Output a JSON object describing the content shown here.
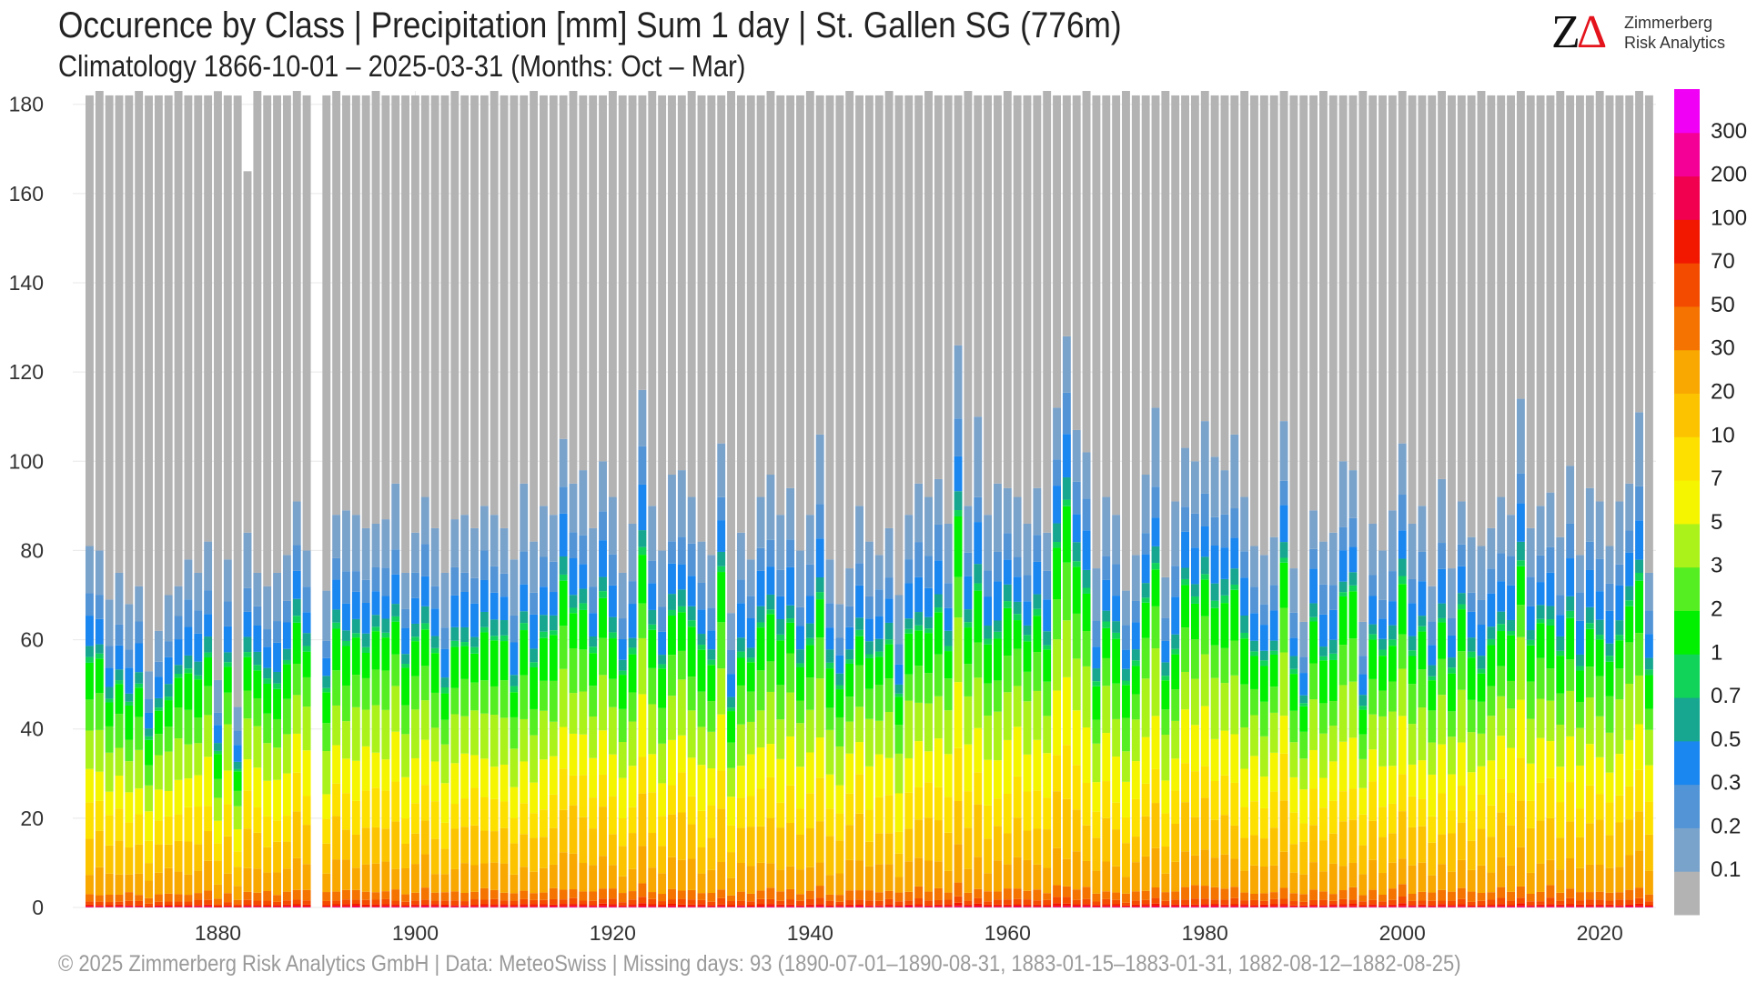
{
  "header": {
    "title": "Occurence by Class | Precipitation [mm] Sum 1 day | St. Gallen  SG (776m)",
    "subtitle": "Climatology 1866-10-01 – 2025-03-31 (Months: Oct – Mar)"
  },
  "logo": {
    "mark_z": "Z",
    "mark_delta": "Δ",
    "line1": "Zimmerberg",
    "line2": "Risk Analytics"
  },
  "footer": {
    "text": "©  2025 Zimmerberg Risk Analytics GmbH | Data: MeteoSwiss | Missing days: 93 (1890-07-01–1890-08-31, 1883-01-15–1883-01-31, 1882-08-12–1882-08-25)"
  },
  "chart_data": {
    "type": "bar",
    "stacked": true,
    "x_start_year": 1867,
    "x_end_year": 2025,
    "xlim": [
      1865.3,
      2025.7
    ],
    "x_ticks": [
      1880,
      1900,
      1920,
      1940,
      1960,
      1980,
      2000,
      2020
    ],
    "ylim": [
      0,
      183
    ],
    "y_ticks": [
      0,
      20,
      40,
      60,
      80,
      100,
      120,
      140,
      160,
      180
    ],
    "grid": true,
    "missing_years": [
      1890
    ],
    "totals": {
      "default": 182,
      "leap_years": 183,
      "exceptions": {
        "1883": 165
      }
    },
    "precip_days_by_year": {
      "1867": 81,
      "1868": 80,
      "1869": 69,
      "1870": 75,
      "1871": 68,
      "1872": 72,
      "1873": 53,
      "1874": 62,
      "1875": 70,
      "1876": 72,
      "1877": 78,
      "1878": 75,
      "1879": 82,
      "1880": 51,
      "1881": 78,
      "1882": 45,
      "1883": 84,
      "1884": 75,
      "1885": 72,
      "1886": 75,
      "1887": 79,
      "1888": 91,
      "1889": 80,
      "1891": 71,
      "1892": 88,
      "1893": 89,
      "1894": 88,
      "1895": 85,
      "1896": 86,
      "1897": 87,
      "1898": 95,
      "1899": 75,
      "1900": 84,
      "1901": 92,
      "1902": 85,
      "1903": 75,
      "1904": 87,
      "1905": 88,
      "1906": 85,
      "1907": 90,
      "1908": 88,
      "1909": 85,
      "1910": 78,
      "1911": 95,
      "1912": 82,
      "1913": 90,
      "1914": 88,
      "1915": 105,
      "1916": 95,
      "1917": 98,
      "1918": 85,
      "1919": 100,
      "1920": 92,
      "1921": 75,
      "1922": 86,
      "1923": 116,
      "1924": 90,
      "1925": 80,
      "1926": 97,
      "1927": 98,
      "1928": 92,
      "1929": 82,
      "1930": 79,
      "1931": 104,
      "1932": 66,
      "1933": 84,
      "1934": 78,
      "1935": 92,
      "1936": 97,
      "1937": 88,
      "1938": 94,
      "1939": 80,
      "1940": 88,
      "1941": 106,
      "1942": 78,
      "1943": 68,
      "1944": 76,
      "1945": 90,
      "1946": 82,
      "1947": 79,
      "1948": 85,
      "1949": 70,
      "1950": 88,
      "1951": 95,
      "1952": 92,
      "1953": 96,
      "1954": 86,
      "1955": 126,
      "1956": 90,
      "1957": 110,
      "1958": 88,
      "1959": 95,
      "1960": 94,
      "1961": 92,
      "1962": 86,
      "1963": 94,
      "1964": 84,
      "1965": 112,
      "1966": 128,
      "1967": 107,
      "1968": 102,
      "1969": 76,
      "1970": 92,
      "1971": 88,
      "1972": 71,
      "1973": 79,
      "1974": 97,
      "1975": 112,
      "1976": 74,
      "1977": 91,
      "1978": 103,
      "1979": 100,
      "1980": 109,
      "1981": 101,
      "1982": 98,
      "1983": 106,
      "1984": 92,
      "1985": 81,
      "1986": 79,
      "1987": 83,
      "1988": 109,
      "1989": 76,
      "1990": 64,
      "1991": 89,
      "1992": 82,
      "1993": 84,
      "1994": 100,
      "1995": 98,
      "1996": 64,
      "1997": 86,
      "1998": 80,
      "1999": 89,
      "2000": 104,
      "2001": 86,
      "2002": 90,
      "2003": 72,
      "2004": 96,
      "2005": 76,
      "2006": 91,
      "2007": 83,
      "2008": 81,
      "2009": 85,
      "2010": 92,
      "2011": 88,
      "2012": 114,
      "2013": 85,
      "2014": 90,
      "2015": 93,
      "2016": 83,
      "2017": 99,
      "2018": 79,
      "2019": 94,
      "2020": 91,
      "2021": 81,
      "2022": 91,
      "2023": 95,
      "2024": 111,
      "2025": 75
    },
    "legend": {
      "placement": "right",
      "classes": [
        {
          "label": "0.1",
          "color": "#b3b3b3"
        },
        {
          "label": "0.2",
          "color": "#7aa3cb"
        },
        {
          "label": "0.3",
          "color": "#5294d6"
        },
        {
          "label": "0.5",
          "color": "#1a86f0"
        },
        {
          "label": "0.7",
          "color": "#17a68f"
        },
        {
          "label": "1",
          "color": "#11d35a"
        },
        {
          "label": "2",
          "color": "#00f000"
        },
        {
          "label": "3",
          "color": "#55ee22"
        },
        {
          "label": "5",
          "color": "#aaf21a"
        },
        {
          "label": "7",
          "color": "#f5f500"
        },
        {
          "label": "10",
          "color": "#fde000"
        },
        {
          "label": "20",
          "color": "#fcc400"
        },
        {
          "label": "30",
          "color": "#f8a800"
        },
        {
          "label": "50",
          "color": "#f57300"
        },
        {
          "label": "70",
          "color": "#f34c00"
        },
        {
          "label": "100",
          "color": "#f21800"
        },
        {
          "label": "200",
          "color": "#f0004f"
        },
        {
          "label": "300",
          "color": "#f50096"
        },
        {
          "label": "",
          "color": "#f000f5"
        }
      ]
    },
    "class_share_of_precip_days": [
      0,
      0.14,
      0.07,
      0.08,
      0.035,
      0.015,
      0.1,
      0.09,
      0.12,
      0.11,
      0.09,
      0.1,
      0.07,
      0.025,
      0.012,
      0.005,
      0.002,
      0.001,
      0
    ]
  }
}
